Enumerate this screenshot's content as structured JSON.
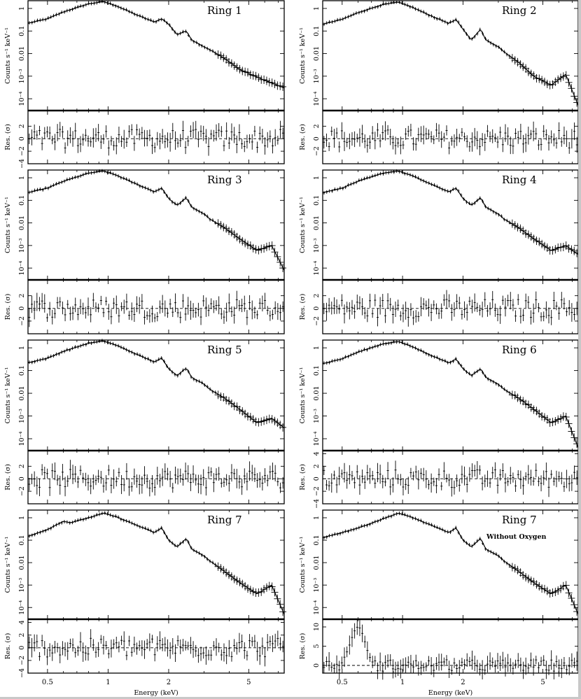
{
  "figure": {
    "x_axis_label": "Energy (keV)",
    "x_ticks": [
      "0.5",
      "1",
      "2",
      "5"
    ],
    "spectrum_ylabel": "Counts s⁻¹ keV⁻¹",
    "spectrum_ticks": [
      "1",
      "0.1",
      "0.01",
      "10⁻³",
      "10⁻⁴"
    ],
    "residual_ylabel": "Res. (σ)"
  },
  "chart_data": [
    {
      "type": "line",
      "title": "Ring 1",
      "xlabel": "Energy (keV)",
      "ylabel": "Counts s⁻¹ keV⁻¹",
      "xlim": [
        0.4,
        7.5
      ],
      "ylim": [
        3e-05,
        2.2
      ],
      "xscale": "log",
      "yscale": "log",
      "x": [
        0.4,
        0.5,
        0.6,
        0.8,
        0.95,
        1.1,
        1.4,
        1.7,
        1.85,
        2.0,
        2.2,
        2.45,
        2.6,
        3.0,
        3.2,
        3.8,
        4.5,
        5.5,
        7.5
      ],
      "series": [
        {
          "values": [
            0.22,
            0.35,
            0.7,
            1.6,
            2.0,
            1.3,
            0.5,
            0.25,
            0.35,
            0.2,
            0.07,
            0.1,
            0.04,
            0.02,
            0.015,
            0.006,
            0.002,
            0.0009,
            0.0003
          ]
        }
      ],
      "residual_ylabel": "Res. (σ)",
      "residual_ylim": [
        -4,
        4.5
      ],
      "residual_ticks": [
        "2",
        "0",
        "−2",
        "−4"
      ]
    },
    {
      "type": "line",
      "title": "Ring 2",
      "xlabel": "Energy (keV)",
      "ylabel": "Counts s⁻¹ keV⁻¹",
      "xlim": [
        0.4,
        7.5
      ],
      "ylim": [
        3e-05,
        2.2
      ],
      "xscale": "log",
      "yscale": "log",
      "x": [
        0.4,
        0.5,
        0.6,
        0.8,
        0.95,
        1.1,
        1.4,
        1.7,
        1.85,
        2.0,
        2.2,
        2.45,
        2.6,
        3.0,
        3.2,
        3.8,
        4.5,
        5.5,
        6.5,
        7.5
      ],
      "series": [
        {
          "values": [
            0.2,
            0.33,
            0.65,
            1.5,
            1.9,
            1.2,
            0.45,
            0.22,
            0.32,
            0.12,
            0.04,
            0.12,
            0.04,
            0.02,
            0.012,
            0.004,
            0.001,
            0.0004,
            0.0012,
            5e-05
          ]
        }
      ],
      "residual_ylabel": "Res. (σ)",
      "residual_ylim": [
        -4,
        4.5
      ],
      "residual_ticks": [
        "2",
        "0",
        "−2"
      ]
    },
    {
      "type": "line",
      "title": "Ring 3",
      "xlabel": "Energy (keV)",
      "ylabel": "Counts s⁻¹ keV⁻¹",
      "xlim": [
        0.4,
        7.5
      ],
      "ylim": [
        3e-05,
        2.2
      ],
      "xscale": "log",
      "yscale": "log",
      "x": [
        0.4,
        0.5,
        0.6,
        0.8,
        0.95,
        1.1,
        1.4,
        1.7,
        1.85,
        2.0,
        2.2,
        2.45,
        2.6,
        3.0,
        3.2,
        3.8,
        4.5,
        5.5,
        6.5,
        7.5
      ],
      "series": [
        {
          "values": [
            0.22,
            0.35,
            0.7,
            1.6,
            2.0,
            1.3,
            0.5,
            0.24,
            0.35,
            0.12,
            0.06,
            0.13,
            0.05,
            0.025,
            0.015,
            0.006,
            0.002,
            0.0006,
            0.001,
            8e-05
          ]
        }
      ],
      "residual_ylabel": "Res. (σ)",
      "residual_ylim": [
        -4,
        4.5
      ],
      "residual_ticks": [
        "2",
        "0",
        "−2"
      ]
    },
    {
      "type": "line",
      "title": "Ring 4",
      "xlabel": "Energy (keV)",
      "ylabel": "Counts s⁻¹ keV⁻¹",
      "xlim": [
        0.4,
        7.5
      ],
      "ylim": [
        3e-05,
        2.2
      ],
      "xscale": "log",
      "yscale": "log",
      "x": [
        0.4,
        0.5,
        0.6,
        0.8,
        0.95,
        1.1,
        1.4,
        1.7,
        1.85,
        2.0,
        2.2,
        2.45,
        2.6,
        3.0,
        3.2,
        3.8,
        4.5,
        5.5,
        6.5,
        7.5
      ],
      "series": [
        {
          "values": [
            0.22,
            0.35,
            0.7,
            1.6,
            2.0,
            1.3,
            0.5,
            0.24,
            0.35,
            0.12,
            0.06,
            0.13,
            0.05,
            0.025,
            0.015,
            0.006,
            0.002,
            0.0006,
            0.001,
            0.0004
          ]
        }
      ],
      "residual_ylabel": "Res. (σ)",
      "residual_ylim": [
        -4,
        4.5
      ],
      "residual_ticks": [
        "2",
        "0",
        "−2"
      ]
    },
    {
      "type": "line",
      "title": "Ring 5",
      "xlabel": "Energy (keV)",
      "ylabel": "Counts s⁻¹ keV⁻¹",
      "xlim": [
        0.4,
        7.5
      ],
      "ylim": [
        3e-05,
        2.2
      ],
      "xscale": "log",
      "yscale": "log",
      "x": [
        0.4,
        0.5,
        0.6,
        0.8,
        0.95,
        1.1,
        1.4,
        1.7,
        1.85,
        2.0,
        2.2,
        2.45,
        2.6,
        3.0,
        3.2,
        3.8,
        4.5,
        5.5,
        6.5,
        7.5
      ],
      "series": [
        {
          "values": [
            0.22,
            0.35,
            0.7,
            1.6,
            2.0,
            1.3,
            0.5,
            0.24,
            0.35,
            0.12,
            0.06,
            0.13,
            0.05,
            0.025,
            0.015,
            0.006,
            0.002,
            0.0005,
            0.0008,
            0.0003
          ]
        }
      ],
      "residual_ylabel": "Res. (σ)",
      "residual_ylim": [
        -4,
        4.5
      ],
      "residual_ticks": [
        "2",
        "0",
        "−2"
      ]
    },
    {
      "type": "line",
      "title": "Ring 6",
      "xlabel": "Energy (keV)",
      "ylabel": "Counts s⁻¹ keV⁻¹",
      "xlim": [
        0.4,
        7.5
      ],
      "ylim": [
        3e-05,
        2.2
      ],
      "xscale": "log",
      "yscale": "log",
      "x": [
        0.4,
        0.5,
        0.6,
        0.8,
        0.95,
        1.1,
        1.4,
        1.7,
        1.85,
        2.0,
        2.2,
        2.45,
        2.6,
        3.0,
        3.2,
        3.8,
        4.5,
        5.5,
        6.5,
        7.5
      ],
      "series": [
        {
          "values": [
            0.2,
            0.33,
            0.65,
            1.5,
            1.9,
            1.2,
            0.45,
            0.22,
            0.32,
            0.12,
            0.06,
            0.12,
            0.05,
            0.025,
            0.015,
            0.006,
            0.002,
            0.0005,
            0.001,
            4e-05
          ]
        }
      ],
      "residual_ylabel": "Res. (σ)",
      "residual_ylim": [
        -4,
        4.5
      ],
      "residual_ticks": [
        "4",
        "2",
        "0",
        "−2",
        "−4"
      ]
    },
    {
      "type": "line",
      "title": "Ring 7",
      "xlabel": "Energy (keV)",
      "ylabel": "Counts s⁻¹ keV⁻¹",
      "xlim": [
        0.4,
        7.5
      ],
      "ylim": [
        3e-05,
        2.2
      ],
      "xscale": "log",
      "yscale": "log",
      "x": [
        0.4,
        0.5,
        0.6,
        0.65,
        0.8,
        0.95,
        1.1,
        1.4,
        1.7,
        1.85,
        2.0,
        2.2,
        2.45,
        2.6,
        3.0,
        3.2,
        3.8,
        4.5,
        5.5,
        6.5,
        7.5
      ],
      "series": [
        {
          "values": [
            0.15,
            0.3,
            0.7,
            0.6,
            1.0,
            1.6,
            1.1,
            0.45,
            0.22,
            0.35,
            0.1,
            0.05,
            0.12,
            0.04,
            0.02,
            0.012,
            0.004,
            0.0013,
            0.0004,
            0.001,
            5e-05
          ]
        }
      ],
      "residual_ylabel": "Res. (σ)",
      "residual_ylim": [
        -4,
        4.5
      ],
      "residual_ticks": [
        "4",
        "2",
        "0",
        "−2",
        "−4"
      ]
    },
    {
      "type": "line",
      "title": "Ring 7",
      "annotation": "Without Oxygen",
      "xlabel": "Energy (keV)",
      "ylabel": "Counts s⁻¹ keV⁻¹",
      "xlim": [
        0.4,
        7.5
      ],
      "ylim": [
        3e-05,
        2.2
      ],
      "xscale": "log",
      "yscale": "log",
      "x": [
        0.4,
        0.5,
        0.6,
        0.65,
        0.8,
        0.95,
        1.1,
        1.4,
        1.7,
        1.85,
        2.0,
        2.2,
        2.45,
        2.6,
        3.0,
        3.2,
        3.8,
        4.5,
        5.5,
        6.5,
        7.5
      ],
      "series": [
        {
          "values": [
            0.13,
            0.22,
            0.35,
            0.45,
            0.9,
            1.6,
            1.1,
            0.45,
            0.22,
            0.35,
            0.1,
            0.05,
            0.12,
            0.04,
            0.02,
            0.012,
            0.004,
            0.0013,
            0.0004,
            0.001,
            5e-05
          ]
        }
      ],
      "residual_ylabel": "Res. (σ)",
      "residual_ylim": [
        -2,
        12
      ],
      "residual_ticks": [
        "10",
        "5",
        "0"
      ]
    }
  ]
}
